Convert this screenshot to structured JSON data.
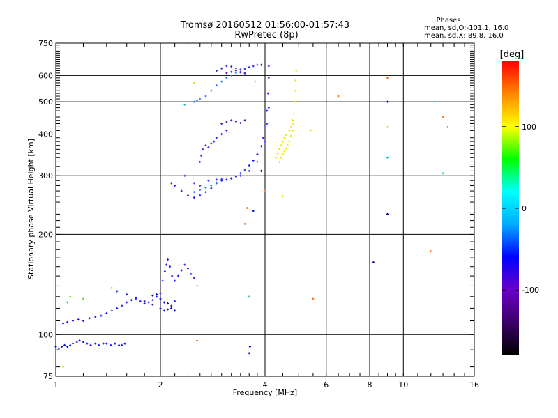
{
  "header": {
    "title": "Tromsø 20160512 01:56:00-01:57:43",
    "subtitle": "RwPretec (8p)",
    "phases_label": "Phases",
    "phases_o": "mean, sd,O:-101.1, 16.0",
    "phases_x": "mean, sd,X: 89.8, 16.0"
  },
  "chart_data": {
    "type": "scatter",
    "xlabel": "Frequency [MHz]",
    "ylabel": "Stationary phase Virtual Height [km]",
    "x_scale": "log",
    "y_scale": "log",
    "xlim": [
      1,
      16
    ],
    "ylim": [
      75,
      750
    ],
    "x_ticks": [
      1,
      2,
      4,
      6,
      8,
      10,
      16
    ],
    "x_tick_labels": [
      "1",
      "2",
      "4",
      "6",
      "8",
      "10",
      "16"
    ],
    "y_ticks": [
      75,
      100,
      200,
      300,
      400,
      500,
      600,
      750
    ],
    "y_tick_labels": [
      "75",
      "100",
      "200",
      "300",
      "400",
      "500",
      "600",
      "750"
    ],
    "grid": true,
    "colorbar": {
      "label": "[deg]",
      "range": [
        -180,
        180
      ],
      "ticks": [
        100,
        0,
        -100
      ],
      "tick_labels": [
        "100",
        "0",
        "-100"
      ],
      "colormap": [
        "#000000",
        "#3c0066",
        "#6a00c8",
        "#0000ff",
        "#00aaff",
        "#00ffff",
        "#00ff00",
        "#ffff00",
        "#ff8800",
        "#ff0000"
      ]
    },
    "series": [
      {
        "color": "#1414e6",
        "points": [
          [
            1.0,
            92
          ],
          [
            1.02,
            91
          ],
          [
            1.04,
            92
          ],
          [
            1.06,
            93
          ],
          [
            1.08,
            92
          ],
          [
            1.1,
            93
          ],
          [
            1.12,
            94
          ],
          [
            1.15,
            95
          ],
          [
            1.17,
            96
          ],
          [
            1.2,
            95
          ],
          [
            1.23,
            94
          ],
          [
            1.26,
            93
          ],
          [
            1.3,
            94
          ],
          [
            1.33,
            93
          ],
          [
            1.37,
            94
          ],
          [
            1.4,
            94
          ],
          [
            1.44,
            93
          ],
          [
            1.48,
            94
          ],
          [
            1.52,
            93
          ],
          [
            1.55,
            93
          ],
          [
            1.58,
            94
          ]
        ]
      },
      {
        "color": "#1a1aff",
        "points": [
          [
            1.05,
            108
          ],
          [
            1.08,
            109
          ],
          [
            1.12,
            110
          ],
          [
            1.16,
            111
          ],
          [
            1.2,
            110
          ],
          [
            1.25,
            112
          ],
          [
            1.3,
            113
          ],
          [
            1.35,
            114
          ],
          [
            1.4,
            116
          ],
          [
            1.45,
            118
          ],
          [
            1.5,
            120
          ],
          [
            1.55,
            122
          ],
          [
            1.6,
            125
          ],
          [
            1.65,
            127
          ],
          [
            1.7,
            128
          ],
          [
            1.75,
            126
          ],
          [
            1.8,
            124
          ],
          [
            1.85,
            125
          ],
          [
            1.9,
            127
          ],
          [
            1.95,
            130
          ],
          [
            2.0,
            133
          ],
          [
            2.03,
            145
          ],
          [
            2.06,
            155
          ],
          [
            2.08,
            162
          ],
          [
            2.1,
            168
          ],
          [
            2.13,
            160
          ],
          [
            2.16,
            150
          ],
          [
            2.2,
            145
          ],
          [
            2.25,
            150
          ],
          [
            2.3,
            156
          ],
          [
            2.35,
            162
          ],
          [
            2.4,
            158
          ],
          [
            2.45,
            152
          ],
          [
            2.5,
            148
          ],
          [
            2.55,
            140
          ]
        ]
      },
      {
        "color": "#2222d6",
        "points": [
          [
            1.45,
            138
          ],
          [
            1.5,
            135
          ],
          [
            1.6,
            132
          ],
          [
            1.7,
            129
          ],
          [
            1.8,
            126
          ],
          [
            1.9,
            123
          ],
          [
            2.0,
            120
          ],
          [
            2.05,
            118
          ],
          [
            2.1,
            119
          ],
          [
            2.15,
            122
          ],
          [
            2.2,
            126
          ]
        ]
      },
      {
        "color": "#0000cc",
        "points": [
          [
            1.9,
            131
          ],
          [
            1.95,
            132
          ],
          [
            2.0,
            128
          ],
          [
            2.05,
            125
          ],
          [
            2.1,
            124
          ],
          [
            2.15,
            120
          ],
          [
            2.2,
            118
          ]
        ]
      },
      {
        "color": "#1e1eff",
        "points": [
          [
            2.15,
            285
          ],
          [
            2.2,
            280
          ],
          [
            2.3,
            270
          ],
          [
            2.4,
            262
          ],
          [
            2.5,
            258
          ],
          [
            2.6,
            262
          ],
          [
            2.7,
            268
          ],
          [
            2.8,
            275
          ],
          [
            2.9,
            285
          ],
          [
            3.0,
            290
          ],
          [
            3.1,
            292
          ],
          [
            3.2,
            294
          ],
          [
            3.3,
            298
          ],
          [
            3.4,
            305
          ],
          [
            3.5,
            312
          ],
          [
            3.6,
            322
          ],
          [
            3.7,
            333
          ],
          [
            3.8,
            348
          ],
          [
            3.9,
            368
          ],
          [
            3.95,
            390
          ],
          [
            4.0,
            420
          ],
          [
            4.05,
            470
          ],
          [
            4.08,
            530
          ],
          [
            4.1,
            590
          ],
          [
            4.1,
            640
          ]
        ]
      },
      {
        "color": "#3232ff",
        "points": [
          [
            2.35,
            300
          ],
          [
            2.5,
            285
          ],
          [
            2.6,
            280
          ],
          [
            2.75,
            290
          ],
          [
            2.9,
            292
          ],
          [
            3.0,
            293
          ],
          [
            3.2,
            295
          ],
          [
            3.4,
            300
          ],
          [
            3.6,
            310
          ],
          [
            3.8,
            330
          ],
          [
            4.0,
            380
          ],
          [
            4.05,
            430
          ],
          [
            4.1,
            480
          ]
        ]
      },
      {
        "color": "#1e90ff",
        "points": [
          [
            2.5,
            268
          ],
          [
            2.6,
            272
          ],
          [
            2.7,
            276
          ],
          [
            2.8,
            280
          ],
          [
            2.9,
            286
          ]
        ]
      },
      {
        "color": "#2a2aff",
        "points": [
          [
            2.6,
            330
          ],
          [
            2.62,
            345
          ],
          [
            2.65,
            360
          ],
          [
            2.7,
            370
          ],
          [
            2.75,
            365
          ],
          [
            2.8,
            375
          ],
          [
            2.85,
            380
          ],
          [
            2.9,
            390
          ],
          [
            3.0,
            400
          ],
          [
            3.1,
            410
          ]
        ]
      },
      {
        "color": "#1e78ff",
        "points": [
          [
            2.5,
            500
          ],
          [
            2.55,
            505
          ],
          [
            2.6,
            510
          ],
          [
            2.7,
            520
          ],
          [
            2.8,
            540
          ],
          [
            2.9,
            560
          ],
          [
            3.0,
            575
          ],
          [
            3.1,
            590
          ],
          [
            3.2,
            600
          ],
          [
            3.3,
            610
          ],
          [
            3.4,
            612
          ],
          [
            3.5,
            608
          ]
        ]
      },
      {
        "color": "#2828e0",
        "points": [
          [
            2.9,
            620
          ],
          [
            3.0,
            630
          ],
          [
            3.1,
            640
          ],
          [
            3.2,
            638
          ],
          [
            3.3,
            630
          ],
          [
            3.4,
            625
          ],
          [
            3.5,
            628
          ],
          [
            3.6,
            635
          ],
          [
            3.7,
            640
          ],
          [
            3.8,
            645
          ],
          [
            3.9,
            645
          ]
        ]
      },
      {
        "color": "#3c14b4",
        "points": [
          [
            3.0,
            430
          ],
          [
            3.1,
            435
          ],
          [
            3.2,
            440
          ],
          [
            3.3,
            436
          ],
          [
            3.4,
            432
          ],
          [
            3.5,
            440
          ]
        ]
      },
      {
        "color": "#5a14b4",
        "points": [
          [
            3.1,
            610
          ],
          [
            3.2,
            615
          ],
          [
            3.3,
            620
          ],
          [
            3.4,
            615
          ],
          [
            3.5,
            610
          ]
        ]
      },
      {
        "color": "#eeee00",
        "points": [
          [
            4.4,
            330
          ],
          [
            4.45,
            340
          ],
          [
            4.5,
            348
          ],
          [
            4.55,
            355
          ],
          [
            4.6,
            362
          ],
          [
            4.65,
            370
          ],
          [
            4.7,
            380
          ],
          [
            4.75,
            395
          ],
          [
            4.8,
            410
          ],
          [
            4.82,
            430
          ],
          [
            4.84,
            460
          ],
          [
            4.86,
            500
          ],
          [
            4.88,
            540
          ],
          [
            4.9,
            580
          ],
          [
            4.92,
            620
          ]
        ]
      },
      {
        "color": "#e6e600",
        "points": [
          [
            4.3,
            340
          ],
          [
            4.35,
            350
          ],
          [
            4.4,
            360
          ],
          [
            4.45,
            370
          ],
          [
            4.5,
            380
          ],
          [
            4.55,
            390
          ],
          [
            4.6,
            398
          ],
          [
            4.7,
            410
          ],
          [
            4.75,
            420
          ],
          [
            4.8,
            440
          ]
        ]
      },
      {
        "color": "#ff6600",
        "points": [
          [
            2.55,
            96
          ],
          [
            3.5,
            215
          ],
          [
            3.55,
            240
          ],
          [
            4.0,
            270
          ],
          [
            5.5,
            128
          ],
          [
            6.5,
            520
          ],
          [
            9.0,
            590
          ],
          [
            12.0,
            178
          ],
          [
            13.0,
            450
          ]
        ]
      },
      {
        "color": "#0000cc",
        "points": [
          [
            3.6,
            88
          ],
          [
            3.62,
            92
          ],
          [
            3.7,
            235
          ],
          [
            3.9,
            310
          ],
          [
            8.2,
            165
          ],
          [
            9.0,
            230
          ],
          [
            9.0,
            500
          ]
        ]
      },
      {
        "color": "#00cccc",
        "points": [
          [
            1.08,
            125
          ],
          [
            2.35,
            490
          ],
          [
            3.6,
            130
          ],
          [
            9.0,
            340
          ],
          [
            12.3,
            500
          ],
          [
            13.0,
            305
          ]
        ]
      },
      {
        "color": "#66dd00",
        "points": [
          [
            1.1,
            130
          ],
          [
            1.2,
            128
          ],
          [
            13.4,
            420
          ]
        ]
      },
      {
        "color": "#dddd00",
        "points": [
          [
            1.05,
            80
          ],
          [
            2.5,
            570
          ],
          [
            3.75,
            575
          ],
          [
            4.5,
            260
          ],
          [
            5.4,
            410
          ],
          [
            9.0,
            420
          ]
        ]
      }
    ]
  }
}
